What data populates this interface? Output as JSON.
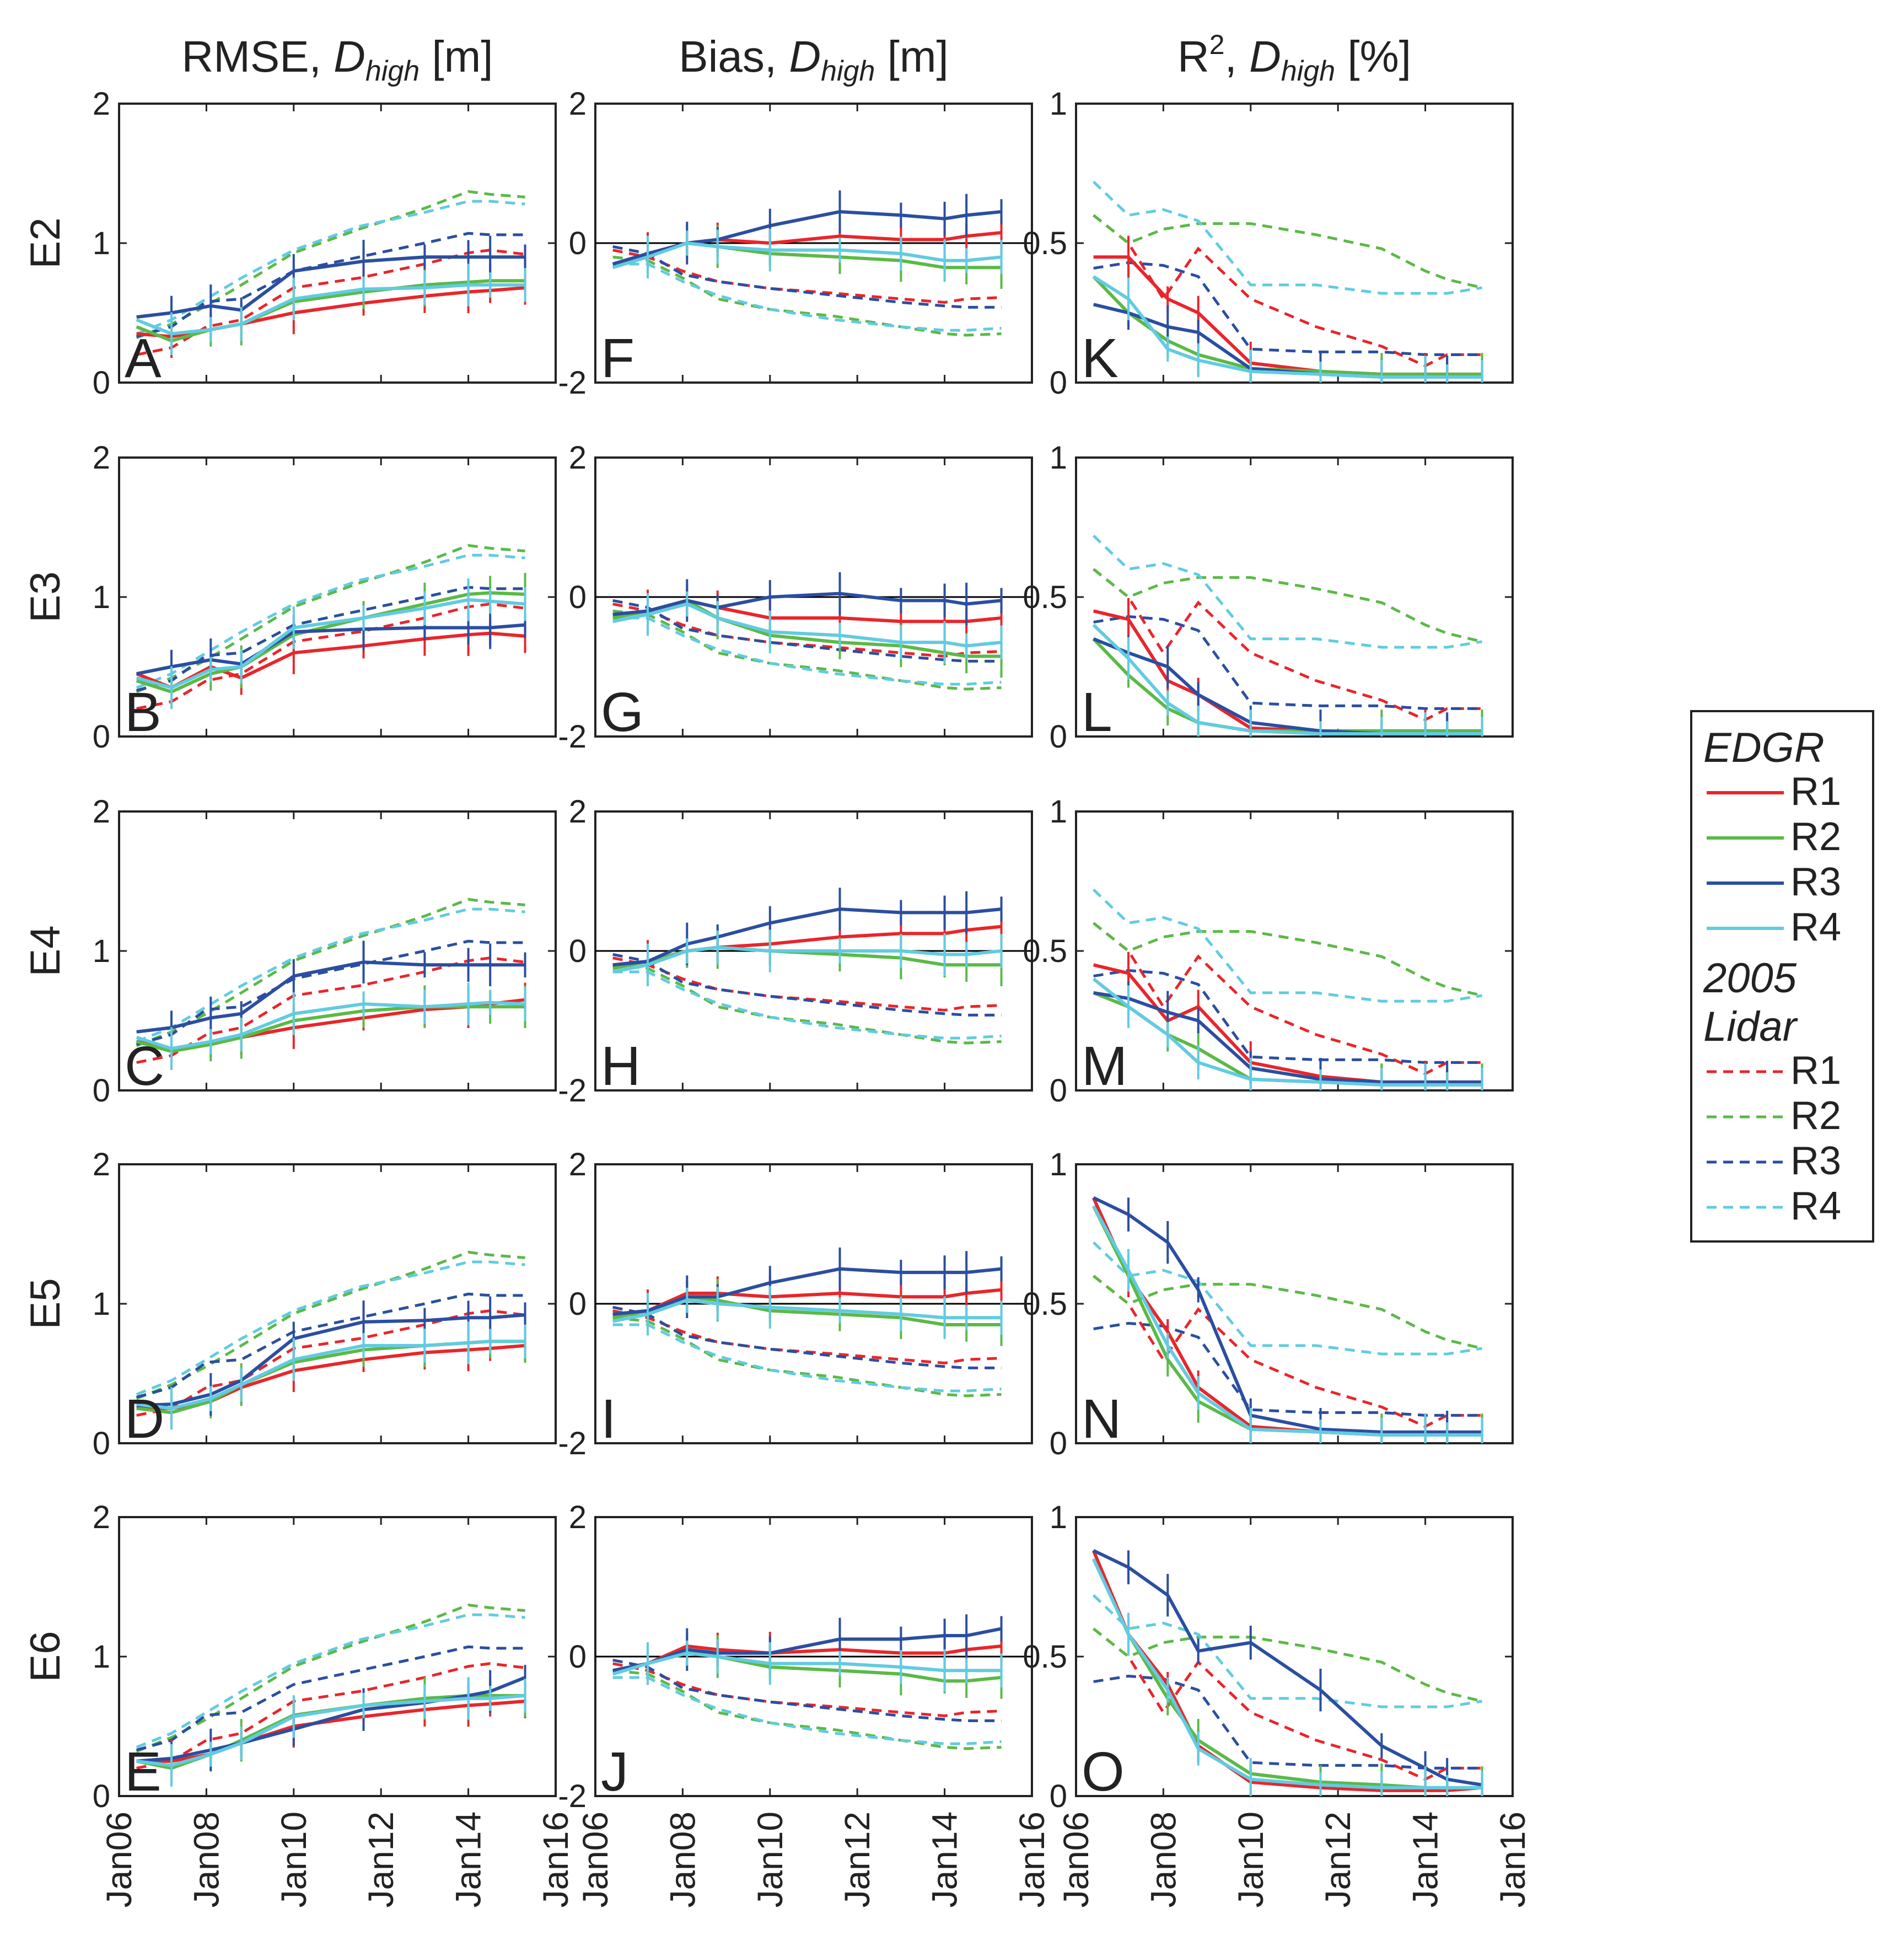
{
  "figure": {
    "columns": [
      {
        "key": "rmse",
        "title_prefix": "RMSE, ",
        "title_var": "D",
        "title_sub": "high",
        "title_suffix": " [m]",
        "ylim": [
          0,
          2
        ],
        "yticks": [
          "0",
          "1",
          "2"
        ]
      },
      {
        "key": "bias",
        "title_prefix": "Bias, ",
        "title_var": "D",
        "title_sub": "high",
        "title_suffix": " [m]",
        "ylim": [
          -2,
          2
        ],
        "yticks": [
          "-2",
          "0",
          "2"
        ]
      },
      {
        "key": "r2",
        "title_prefix": "R",
        "title_sup": "2",
        "title_mid": ", ",
        "title_var": "D",
        "title_sub": "high",
        "title_suffix": " [%]",
        "ylim": [
          0,
          1
        ],
        "yticks": [
          "0",
          "0.5",
          "1"
        ]
      }
    ],
    "rows": [
      "E2",
      "E3",
      "E4",
      "E5",
      "E6"
    ],
    "panel_letters": [
      [
        "A",
        "F",
        "K"
      ],
      [
        "B",
        "G",
        "L"
      ],
      [
        "C",
        "H",
        "M"
      ],
      [
        "D",
        "I",
        "N"
      ],
      [
        "E",
        "J",
        "O"
      ]
    ],
    "xticks": [
      "Jan06",
      "Jan08",
      "Jan10",
      "Jan12",
      "Jan14",
      "Jan16"
    ],
    "legend": {
      "group1": "EDGR",
      "group2_line1": "2005",
      "group2_line2": "Lidar",
      "entries": [
        "R1",
        "R2",
        "R3",
        "R4"
      ]
    }
  },
  "colors": {
    "R1": "#e8262b",
    "R2": "#5bb947",
    "R3": "#2b4ea0",
    "R4": "#62cbe0",
    "zero": "#000000"
  },
  "chart_data": {
    "type": "line",
    "x_units": "years since Jan 2006",
    "xlim": [
      0,
      10
    ],
    "solid_x": [
      0.4,
      1.2,
      2.1,
      2.8,
      4.0,
      5.6,
      7.0,
      8.0,
      8.5,
      9.3
    ],
    "dashed_x": [
      0.4,
      1.2,
      2.0,
      2.8,
      4.0,
      5.5,
      7.0,
      8.0,
      8.5,
      9.3
    ],
    "dashed": {
      "rmse": {
        "R1": [
          0.2,
          0.25,
          0.4,
          0.45,
          0.68,
          0.75,
          0.85,
          0.93,
          0.95,
          0.92
        ],
        "R2": [
          0.32,
          0.42,
          0.55,
          0.7,
          0.93,
          1.1,
          1.25,
          1.37,
          1.35,
          1.33
        ],
        "R3": [
          0.33,
          0.4,
          0.58,
          0.6,
          0.8,
          0.9,
          1.0,
          1.07,
          1.06,
          1.06
        ],
        "R4": [
          0.35,
          0.45,
          0.6,
          0.75,
          0.95,
          1.12,
          1.22,
          1.3,
          1.3,
          1.28
        ]
      },
      "bias": {
        "R1": [
          -0.1,
          -0.2,
          -0.4,
          -0.55,
          -0.65,
          -0.72,
          -0.8,
          -0.85,
          -0.8,
          -0.78
        ],
        "R2": [
          -0.2,
          -0.25,
          -0.5,
          -0.8,
          -0.95,
          -1.05,
          -1.2,
          -1.3,
          -1.32,
          -1.3
        ],
        "R3": [
          -0.05,
          -0.15,
          -0.45,
          -0.55,
          -0.65,
          -0.75,
          -0.85,
          -0.9,
          -0.92,
          -0.92
        ],
        "R4": [
          -0.3,
          -0.3,
          -0.55,
          -0.75,
          -0.95,
          -1.1,
          -1.2,
          -1.25,
          -1.25,
          -1.22
        ]
      },
      "r2": {
        "R1": [
          0.6,
          0.5,
          0.3,
          0.48,
          0.3,
          0.2,
          0.13,
          0.06,
          0.1,
          0.1
        ],
        "R2": [
          0.6,
          0.5,
          0.55,
          0.57,
          0.57,
          0.53,
          0.48,
          0.4,
          0.37,
          0.34
        ],
        "R3": [
          0.41,
          0.43,
          0.42,
          0.38,
          0.12,
          0.11,
          0.11,
          0.1,
          0.1,
          0.1
        ],
        "R4": [
          0.72,
          0.6,
          0.62,
          0.58,
          0.35,
          0.35,
          0.32,
          0.32,
          0.32,
          0.34
        ]
      }
    },
    "solid": {
      "rmse": {
        "E2": {
          "R1": [
            0.35,
            0.33,
            0.38,
            0.42,
            0.5,
            0.57,
            0.62,
            0.65,
            0.66,
            0.68
          ],
          "R2": [
            0.4,
            0.3,
            0.38,
            0.42,
            0.58,
            0.65,
            0.7,
            0.72,
            0.73,
            0.73
          ],
          "R3": [
            0.47,
            0.5,
            0.55,
            0.52,
            0.8,
            0.87,
            0.9,
            0.9,
            0.9,
            0.9
          ],
          "R4": [
            0.45,
            0.35,
            0.38,
            0.42,
            0.6,
            0.67,
            0.68,
            0.7,
            0.7,
            0.7
          ]
        },
        "E3": {
          "R1": [
            0.45,
            0.35,
            0.5,
            0.42,
            0.6,
            0.65,
            0.7,
            0.73,
            0.74,
            0.72
          ],
          "R2": [
            0.4,
            0.32,
            0.45,
            0.5,
            0.73,
            0.85,
            0.95,
            1.02,
            1.03,
            1.02
          ],
          "R3": [
            0.45,
            0.5,
            0.55,
            0.52,
            0.75,
            0.77,
            0.78,
            0.78,
            0.78,
            0.8
          ],
          "R4": [
            0.42,
            0.35,
            0.48,
            0.5,
            0.78,
            0.85,
            0.92,
            0.98,
            0.97,
            0.95
          ]
        },
        "E4": {
          "R1": [
            0.35,
            0.3,
            0.33,
            0.38,
            0.45,
            0.52,
            0.58,
            0.6,
            0.62,
            0.65
          ],
          "R2": [
            0.35,
            0.28,
            0.33,
            0.38,
            0.5,
            0.57,
            0.6,
            0.6,
            0.6,
            0.6
          ],
          "R3": [
            0.42,
            0.45,
            0.52,
            0.55,
            0.82,
            0.92,
            0.9,
            0.9,
            0.9,
            0.9
          ],
          "R4": [
            0.38,
            0.3,
            0.35,
            0.4,
            0.55,
            0.62,
            0.6,
            0.62,
            0.63,
            0.62
          ]
        },
        "E5": {
          "R1": [
            0.25,
            0.25,
            0.3,
            0.4,
            0.52,
            0.6,
            0.65,
            0.67,
            0.68,
            0.7
          ],
          "R2": [
            0.25,
            0.22,
            0.3,
            0.42,
            0.58,
            0.67,
            0.7,
            0.72,
            0.73,
            0.73
          ],
          "R3": [
            0.27,
            0.28,
            0.35,
            0.45,
            0.75,
            0.87,
            0.88,
            0.9,
            0.9,
            0.92
          ],
          "R4": [
            0.28,
            0.25,
            0.32,
            0.42,
            0.6,
            0.7,
            0.7,
            0.72,
            0.73,
            0.73
          ]
        },
        "E6": {
          "R1": [
            0.25,
            0.25,
            0.3,
            0.38,
            0.5,
            0.57,
            0.62,
            0.65,
            0.66,
            0.68
          ],
          "R2": [
            0.25,
            0.2,
            0.3,
            0.4,
            0.58,
            0.65,
            0.7,
            0.72,
            0.72,
            0.72
          ],
          "R3": [
            0.25,
            0.27,
            0.33,
            0.38,
            0.48,
            0.62,
            0.67,
            0.72,
            0.75,
            0.85
          ],
          "R4": [
            0.25,
            0.22,
            0.3,
            0.38,
            0.57,
            0.65,
            0.68,
            0.7,
            0.7,
            0.72
          ]
        }
      },
      "bias": {
        "E2": {
          "R1": [
            -0.3,
            -0.15,
            0.0,
            0.05,
            0.0,
            0.1,
            0.05,
            0.05,
            0.1,
            0.15
          ],
          "R2": [
            -0.35,
            -0.15,
            0.0,
            -0.05,
            -0.15,
            -0.2,
            -0.25,
            -0.35,
            -0.35,
            -0.35
          ],
          "R3": [
            -0.3,
            -0.15,
            0.0,
            0.05,
            0.25,
            0.45,
            0.4,
            0.35,
            0.4,
            0.45
          ],
          "R4": [
            -0.35,
            -0.2,
            0.0,
            -0.05,
            -0.1,
            -0.1,
            -0.15,
            -0.25,
            -0.25,
            -0.2
          ]
        },
        "E3": {
          "R1": [
            -0.25,
            -0.2,
            -0.05,
            -0.15,
            -0.3,
            -0.3,
            -0.35,
            -0.35,
            -0.35,
            -0.3
          ],
          "R2": [
            -0.3,
            -0.2,
            -0.05,
            -0.3,
            -0.55,
            -0.65,
            -0.7,
            -0.8,
            -0.85,
            -0.85
          ],
          "R3": [
            -0.25,
            -0.2,
            -0.05,
            -0.15,
            0.0,
            0.05,
            -0.05,
            -0.05,
            -0.1,
            -0.05
          ],
          "R4": [
            -0.35,
            -0.25,
            -0.1,
            -0.3,
            -0.5,
            -0.55,
            -0.65,
            -0.65,
            -0.7,
            -0.65
          ]
        },
        "E4": {
          "R1": [
            -0.2,
            -0.15,
            0.0,
            0.05,
            0.1,
            0.2,
            0.25,
            0.25,
            0.3,
            0.35
          ],
          "R2": [
            -0.25,
            -0.15,
            0.0,
            0.05,
            0.0,
            -0.05,
            -0.1,
            -0.2,
            -0.2,
            -0.2
          ],
          "R3": [
            -0.2,
            -0.15,
            0.1,
            0.2,
            0.4,
            0.6,
            0.55,
            0.55,
            0.55,
            0.6
          ],
          "R4": [
            -0.3,
            -0.2,
            0.0,
            0.05,
            0.0,
            0.0,
            0.0,
            -0.05,
            -0.05,
            0.0
          ]
        },
        "E5": {
          "R1": [
            -0.15,
            -0.1,
            0.15,
            0.15,
            0.1,
            0.15,
            0.1,
            0.1,
            0.15,
            0.2
          ],
          "R2": [
            -0.2,
            -0.1,
            0.1,
            0.05,
            -0.1,
            -0.15,
            -0.2,
            -0.3,
            -0.3,
            -0.3
          ],
          "R3": [
            -0.15,
            -0.1,
            0.1,
            0.1,
            0.3,
            0.5,
            0.45,
            0.45,
            0.45,
            0.5
          ],
          "R4": [
            -0.25,
            -0.15,
            0.05,
            0.0,
            -0.05,
            -0.1,
            -0.15,
            -0.2,
            -0.2,
            -0.2
          ]
        },
        "E6": {
          "R1": [
            -0.2,
            -0.1,
            0.15,
            0.1,
            0.05,
            0.1,
            0.05,
            0.05,
            0.1,
            0.15
          ],
          "R2": [
            -0.2,
            -0.1,
            0.1,
            0.0,
            -0.15,
            -0.2,
            -0.25,
            -0.35,
            -0.35,
            -0.3
          ],
          "R3": [
            -0.2,
            -0.1,
            0.1,
            0.05,
            0.05,
            0.25,
            0.25,
            0.3,
            0.3,
            0.4
          ],
          "R4": [
            -0.25,
            -0.1,
            0.05,
            0.0,
            -0.1,
            -0.1,
            -0.15,
            -0.2,
            -0.2,
            -0.2
          ]
        }
      },
      "r2": {
        "E2": {
          "R1": [
            0.45,
            0.45,
            0.3,
            0.25,
            0.07,
            0.04,
            0.03,
            0.03,
            0.03,
            0.03
          ],
          "R2": [
            0.38,
            0.25,
            0.15,
            0.1,
            0.05,
            0.04,
            0.03,
            0.03,
            0.03,
            0.03
          ],
          "R3": [
            0.28,
            0.25,
            0.2,
            0.18,
            0.05,
            0.03,
            0.02,
            0.02,
            0.02,
            0.02
          ],
          "R4": [
            0.38,
            0.3,
            0.12,
            0.08,
            0.04,
            0.03,
            0.02,
            0.02,
            0.02,
            0.02
          ]
        },
        "E3": {
          "R1": [
            0.45,
            0.42,
            0.2,
            0.15,
            0.03,
            0.02,
            0.02,
            0.02,
            0.02,
            0.02
          ],
          "R2": [
            0.35,
            0.22,
            0.1,
            0.05,
            0.02,
            0.02,
            0.02,
            0.02,
            0.02,
            0.02
          ],
          "R3": [
            0.35,
            0.3,
            0.25,
            0.15,
            0.05,
            0.02,
            0.01,
            0.01,
            0.01,
            0.01
          ],
          "R4": [
            0.4,
            0.28,
            0.12,
            0.05,
            0.02,
            0.01,
            0.01,
            0.01,
            0.01,
            0.01
          ]
        },
        "E4": {
          "R1": [
            0.45,
            0.42,
            0.25,
            0.3,
            0.1,
            0.05,
            0.03,
            0.03,
            0.03,
            0.03
          ],
          "R2": [
            0.35,
            0.3,
            0.2,
            0.15,
            0.04,
            0.03,
            0.02,
            0.02,
            0.02,
            0.02
          ],
          "R3": [
            0.35,
            0.33,
            0.28,
            0.25,
            0.08,
            0.04,
            0.03,
            0.03,
            0.03,
            0.03
          ],
          "R4": [
            0.4,
            0.3,
            0.2,
            0.1,
            0.04,
            0.03,
            0.02,
            0.02,
            0.02,
            0.02
          ]
        },
        "E5": {
          "R1": [
            0.88,
            0.6,
            0.4,
            0.2,
            0.06,
            0.04,
            0.03,
            0.03,
            0.03,
            0.03
          ],
          "R2": [
            0.85,
            0.6,
            0.3,
            0.15,
            0.05,
            0.04,
            0.03,
            0.03,
            0.03,
            0.03
          ],
          "R3": [
            0.88,
            0.82,
            0.72,
            0.55,
            0.1,
            0.05,
            0.04,
            0.04,
            0.04,
            0.04
          ],
          "R4": [
            0.85,
            0.62,
            0.35,
            0.18,
            0.05,
            0.04,
            0.03,
            0.03,
            0.03,
            0.03
          ]
        },
        "E6": {
          "R1": [
            0.88,
            0.58,
            0.4,
            0.18,
            0.05,
            0.03,
            0.02,
            0.02,
            0.02,
            0.03
          ],
          "R2": [
            0.85,
            0.58,
            0.35,
            0.2,
            0.08,
            0.05,
            0.04,
            0.03,
            0.03,
            0.03
          ],
          "R3": [
            0.88,
            0.82,
            0.72,
            0.52,
            0.55,
            0.38,
            0.18,
            0.1,
            0.06,
            0.04
          ],
          "R4": [
            0.85,
            0.58,
            0.38,
            0.17,
            0.06,
            0.04,
            0.03,
            0.03,
            0.03,
            0.03
          ]
        }
      }
    }
  }
}
